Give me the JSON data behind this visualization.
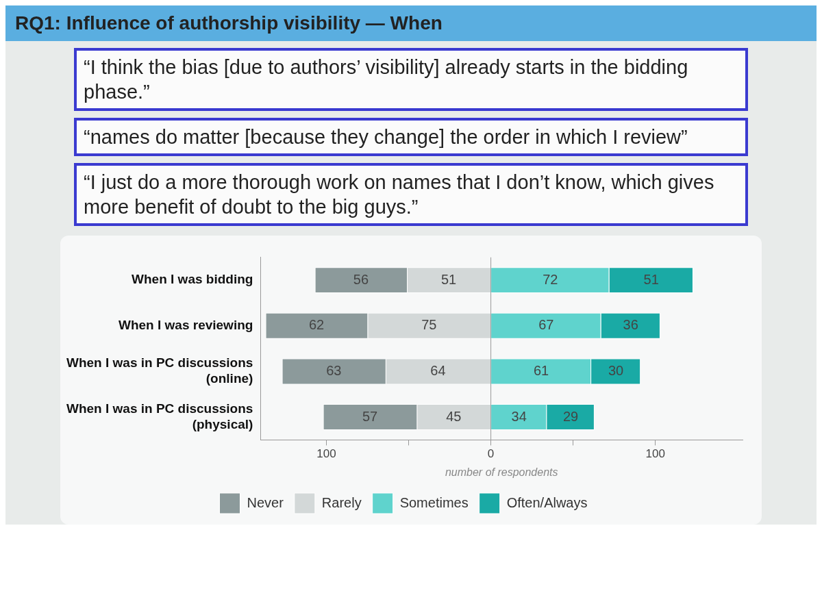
{
  "chart_data": {
    "type": "bar",
    "orientation": "horizontal",
    "title": "RQ1: Influence of authorship visibility — When",
    "annotations": [
      "“I think the bias [due to authors’ visibility] already starts in the bidding phase.”",
      "“names do matter [because they change] the order in which I review”",
      "“I just do a more thorough work on names that I don’t know, which gives more benefit of doubt to the big guys.”"
    ],
    "categories": [
      "When I was bidding",
      "When I was reviewing",
      "When I was in PC discussions\n(online)",
      "When I was in PC discussions\n(physical)"
    ],
    "xlabel": "number of respondents",
    "series": [
      {
        "name": "Never",
        "color": "#8c9a9b",
        "values": [
          56,
          62,
          63,
          57
        ],
        "base": [
          -107,
          -137,
          -127,
          -102
        ]
      },
      {
        "name": "Rarely",
        "color": "#d3d8d8",
        "values": [
          51,
          75,
          64,
          45
        ],
        "base": [
          -51,
          -75,
          -64,
          -45
        ]
      },
      {
        "name": "Sometimes",
        "color": "#5fd3cd",
        "values": [
          72,
          67,
          61,
          34
        ],
        "base": [
          0,
          0,
          0,
          0
        ]
      },
      {
        "name": "Often/Always",
        "color": "#1aaaa5",
        "values": [
          51,
          36,
          30,
          29
        ],
        "base": [
          72,
          67,
          61,
          34
        ]
      }
    ],
    "data_labels": true,
    "xlim": [
      -140,
      153
    ],
    "xticks": [
      {
        "value": -100,
        "label": "100"
      },
      {
        "value": -50,
        "label": null
      },
      0,
      {
        "value": 50,
        "label": null
      },
      100
    ],
    "ref_lines": [
      {
        "axis": "x",
        "value": 0,
        "color": "#999999"
      }
    ],
    "grid": false,
    "legend": "bottom"
  }
}
